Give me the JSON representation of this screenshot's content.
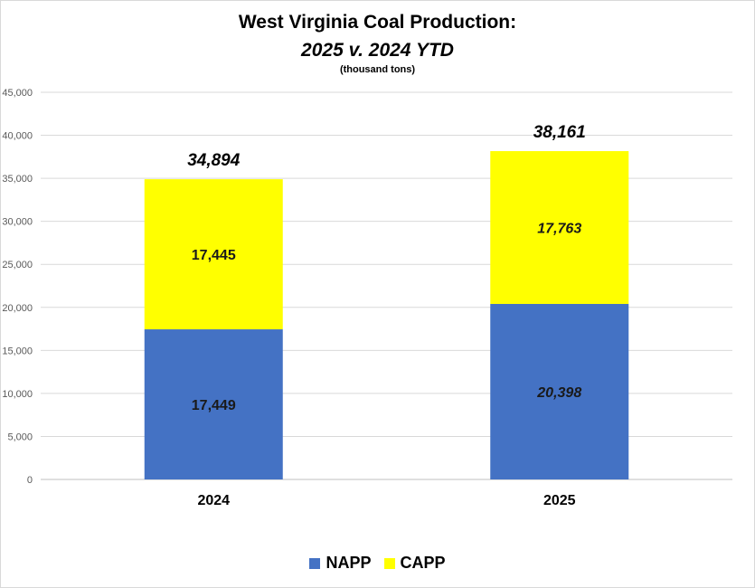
{
  "chart_data": {
    "type": "bar",
    "stacked": true,
    "title": "West Virginia Coal Production:",
    "title_line2": "2025 v. 2024 YTD",
    "subtitle": "(thousand tons)",
    "categories": [
      "2024",
      "2025"
    ],
    "series": [
      {
        "name": "NAPP",
        "values": [
          17449,
          20398
        ],
        "labels": [
          "17,449",
          "20,398"
        ],
        "color": "#4472c4"
      },
      {
        "name": "CAPP",
        "values": [
          17445,
          17763
        ],
        "labels": [
          "17,445",
          "17,763"
        ],
        "color": "#ffff00"
      }
    ],
    "totals": [
      34894,
      38161
    ],
    "total_labels": [
      "34,894",
      "38,161"
    ],
    "ylim": [
      0,
      45000
    ],
    "yticks": [
      0,
      5000,
      10000,
      15000,
      20000,
      25000,
      30000,
      35000,
      40000,
      45000
    ],
    "ytick_labels": [
      "0",
      "5,000",
      "10,000",
      "15,000",
      "20,000",
      "25,000",
      "30,000",
      "35,000",
      "40,000",
      "45,000"
    ],
    "grid": true,
    "legend_position": "bottom",
    "italic_categories": [
      "2025"
    ]
  }
}
